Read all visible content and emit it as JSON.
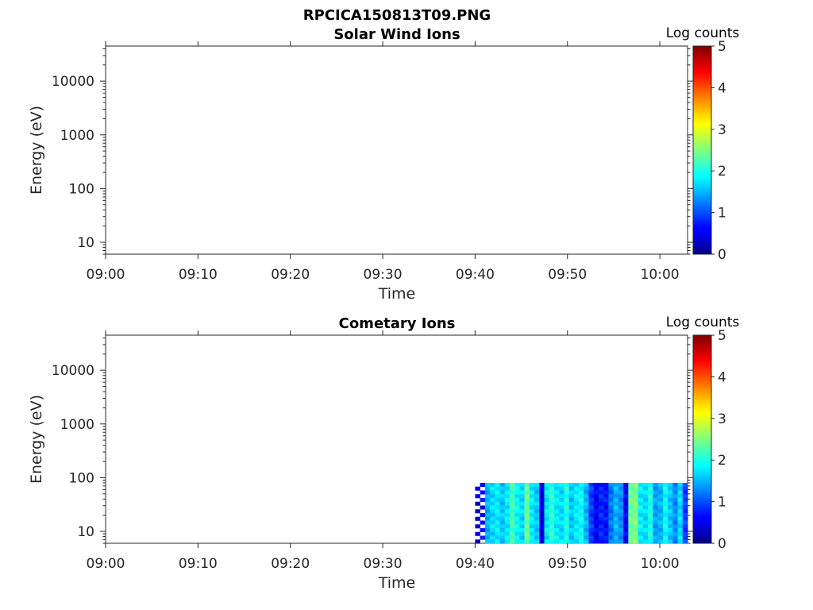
{
  "figure": {
    "title": "RPCICA150813T09.PNG"
  },
  "chart_data": [
    {
      "type": "heatmap",
      "title": "Solar Wind Ions",
      "xlabel": "Time",
      "ylabel": "Energy (eV)",
      "x_ticks": [
        "09:00",
        "09:10",
        "09:20",
        "09:30",
        "09:40",
        "09:50",
        "10:00"
      ],
      "xlim": [
        "09:00",
        "10:03"
      ],
      "y_scale": "log",
      "y_ticks": [
        10,
        100,
        1000,
        10000
      ],
      "y_tick_labels": [
        "10",
        "100",
        "1000",
        "10000"
      ],
      "ylim": [
        6,
        45000
      ],
      "colorbar": {
        "label": "Log counts",
        "range": [
          0,
          5
        ],
        "ticks": [
          "0",
          "1",
          "2",
          "3",
          "4",
          "5"
        ],
        "colormap": "jet"
      },
      "data": []
    },
    {
      "type": "heatmap",
      "title": "Cometary Ions",
      "xlabel": "Time",
      "ylabel": "Energy (eV)",
      "x_ticks": [
        "09:00",
        "09:10",
        "09:20",
        "09:30",
        "09:40",
        "09:50",
        "10:00"
      ],
      "xlim": [
        "09:00",
        "10:03"
      ],
      "y_scale": "log",
      "y_ticks": [
        10,
        100,
        1000,
        10000
      ],
      "y_tick_labels": [
        "10",
        "100",
        "1000",
        "10000"
      ],
      "ylim": [
        6,
        45000
      ],
      "colorbar": {
        "label": "Log counts",
        "range": [
          0,
          5
        ],
        "ticks": [
          "0",
          "1",
          "2",
          "3",
          "4",
          "5"
        ],
        "colormap": "jet"
      },
      "data_region": {
        "time_start": "09:40",
        "time_end": "10:03",
        "energy_min": 6,
        "energy_max": 80
      },
      "column_log_counts": [
        0.4,
        0.6,
        1.5,
        1.7,
        1.8,
        1.6,
        1.8,
        2.2,
        1.9,
        1.7,
        2.4,
        1.8,
        1.6,
        0.5,
        1.8,
        2.1,
        1.8,
        1.7,
        2.0,
        1.6,
        1.8,
        1.9,
        1.5,
        0.9,
        0.6,
        0.8,
        0.7,
        1.2,
        1.5,
        1.3,
        0.6,
        2.4,
        2.5,
        1.8,
        1.7,
        2.0,
        1.4,
        1.5,
        1.9,
        1.6,
        1.3,
        1.7,
        0.9
      ]
    }
  ]
}
